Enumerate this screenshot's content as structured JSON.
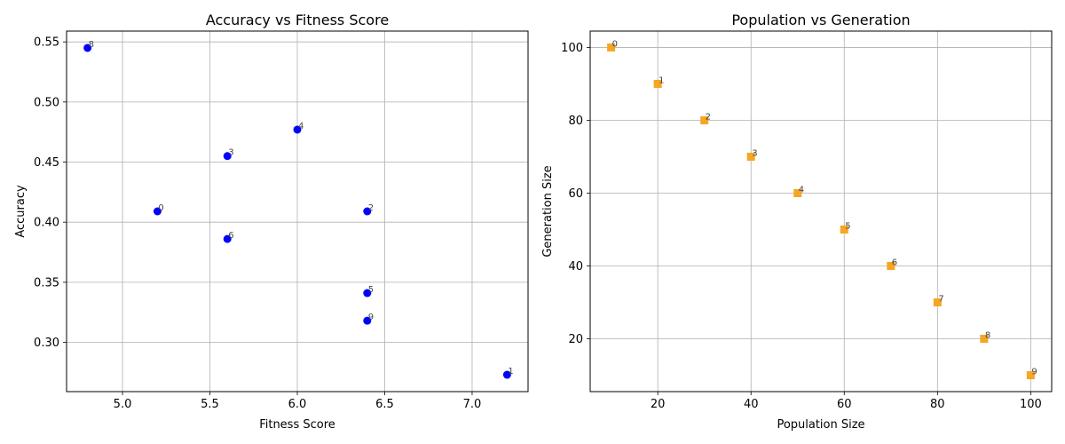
{
  "chart_data": [
    {
      "type": "scatter",
      "title": "Accuracy vs Fitness Score",
      "xlabel": "Fitness Score",
      "ylabel": "Accuracy",
      "xlim": [
        4.68,
        7.32
      ],
      "ylim": [
        0.259,
        0.559
      ],
      "xticks": [
        5.0,
        5.5,
        6.0,
        6.5,
        7.0
      ],
      "xtick_labels": [
        "5.0",
        "5.5",
        "6.0",
        "6.5",
        "7.0"
      ],
      "yticks": [
        0.3,
        0.35,
        0.4,
        0.45,
        0.5,
        0.55
      ],
      "ytick_labels": [
        "0.30",
        "0.35",
        "0.40",
        "0.45",
        "0.50",
        "0.55"
      ],
      "grid": true,
      "marker": "circle",
      "color": "#0000ff",
      "points": [
        {
          "label": "0",
          "x": 5.2,
          "y": 0.409
        },
        {
          "label": "1",
          "x": 7.2,
          "y": 0.273
        },
        {
          "label": "2",
          "x": 6.4,
          "y": 0.409
        },
        {
          "label": "3",
          "x": 5.6,
          "y": 0.455
        },
        {
          "label": "4",
          "x": 6.0,
          "y": 0.477
        },
        {
          "label": "5",
          "x": 6.4,
          "y": 0.341
        },
        {
          "label": "6",
          "x": 5.6,
          "y": 0.386
        },
        {
          "label": "8",
          "x": 4.8,
          "y": 0.545
        },
        {
          "label": "9",
          "x": 6.4,
          "y": 0.318
        }
      ]
    },
    {
      "type": "scatter",
      "title": "Population vs Generation",
      "xlabel": "Population Size",
      "ylabel": "Generation Size",
      "xlim": [
        5.5,
        104.5
      ],
      "ylim": [
        5.5,
        104.5
      ],
      "xticks": [
        20,
        40,
        60,
        80,
        100
      ],
      "xtick_labels": [
        "20",
        "40",
        "60",
        "80",
        "100"
      ],
      "yticks": [
        20,
        40,
        60,
        80,
        100
      ],
      "ytick_labels": [
        "20",
        "40",
        "60",
        "80",
        "100"
      ],
      "grid": true,
      "marker": "square",
      "color": "#f5a623",
      "points": [
        {
          "label": "0",
          "x": 10,
          "y": 100
        },
        {
          "label": "1",
          "x": 20,
          "y": 90
        },
        {
          "label": "2",
          "x": 30,
          "y": 80
        },
        {
          "label": "3",
          "x": 40,
          "y": 70
        },
        {
          "label": "4",
          "x": 50,
          "y": 60
        },
        {
          "label": "5",
          "x": 60,
          "y": 50
        },
        {
          "label": "6",
          "x": 70,
          "y": 40
        },
        {
          "label": "7",
          "x": 80,
          "y": 30
        },
        {
          "label": "8",
          "x": 90,
          "y": 20
        },
        {
          "label": "9",
          "x": 100,
          "y": 10
        }
      ]
    }
  ]
}
